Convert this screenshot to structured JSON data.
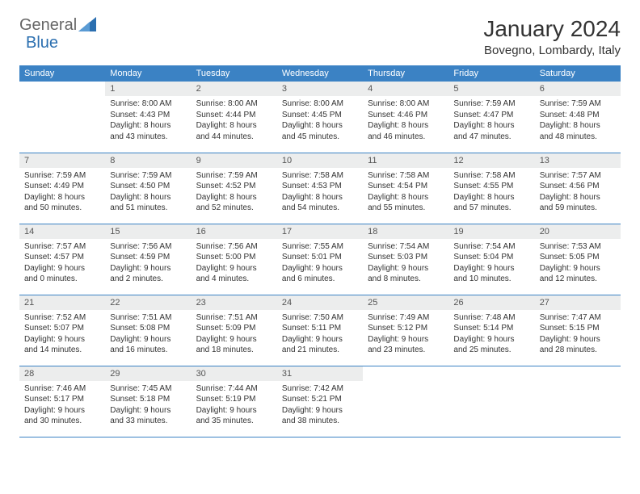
{
  "logo": {
    "text1": "General",
    "text2": "Blue"
  },
  "title": "January 2024",
  "location": "Bovegno, Lombardy, Italy",
  "dayHeaders": [
    "Sunday",
    "Monday",
    "Tuesday",
    "Wednesday",
    "Thursday",
    "Friday",
    "Saturday"
  ],
  "colors": {
    "headerBg": "#3b82c4",
    "dayNumBg": "#eceded",
    "logoAccent": "#2b6fb0"
  },
  "weeks": [
    [
      null,
      {
        "n": "1",
        "sr": "8:00 AM",
        "ss": "4:43 PM",
        "dl": "8 hours and 43 minutes."
      },
      {
        "n": "2",
        "sr": "8:00 AM",
        "ss": "4:44 PM",
        "dl": "8 hours and 44 minutes."
      },
      {
        "n": "3",
        "sr": "8:00 AM",
        "ss": "4:45 PM",
        "dl": "8 hours and 45 minutes."
      },
      {
        "n": "4",
        "sr": "8:00 AM",
        "ss": "4:46 PM",
        "dl": "8 hours and 46 minutes."
      },
      {
        "n": "5",
        "sr": "7:59 AM",
        "ss": "4:47 PM",
        "dl": "8 hours and 47 minutes."
      },
      {
        "n": "6",
        "sr": "7:59 AM",
        "ss": "4:48 PM",
        "dl": "8 hours and 48 minutes."
      }
    ],
    [
      {
        "n": "7",
        "sr": "7:59 AM",
        "ss": "4:49 PM",
        "dl": "8 hours and 50 minutes."
      },
      {
        "n": "8",
        "sr": "7:59 AM",
        "ss": "4:50 PM",
        "dl": "8 hours and 51 minutes."
      },
      {
        "n": "9",
        "sr": "7:59 AM",
        "ss": "4:52 PM",
        "dl": "8 hours and 52 minutes."
      },
      {
        "n": "10",
        "sr": "7:58 AM",
        "ss": "4:53 PM",
        "dl": "8 hours and 54 minutes."
      },
      {
        "n": "11",
        "sr": "7:58 AM",
        "ss": "4:54 PM",
        "dl": "8 hours and 55 minutes."
      },
      {
        "n": "12",
        "sr": "7:58 AM",
        "ss": "4:55 PM",
        "dl": "8 hours and 57 minutes."
      },
      {
        "n": "13",
        "sr": "7:57 AM",
        "ss": "4:56 PM",
        "dl": "8 hours and 59 minutes."
      }
    ],
    [
      {
        "n": "14",
        "sr": "7:57 AM",
        "ss": "4:57 PM",
        "dl": "9 hours and 0 minutes."
      },
      {
        "n": "15",
        "sr": "7:56 AM",
        "ss": "4:59 PM",
        "dl": "9 hours and 2 minutes."
      },
      {
        "n": "16",
        "sr": "7:56 AM",
        "ss": "5:00 PM",
        "dl": "9 hours and 4 minutes."
      },
      {
        "n": "17",
        "sr": "7:55 AM",
        "ss": "5:01 PM",
        "dl": "9 hours and 6 minutes."
      },
      {
        "n": "18",
        "sr": "7:54 AM",
        "ss": "5:03 PM",
        "dl": "9 hours and 8 minutes."
      },
      {
        "n": "19",
        "sr": "7:54 AM",
        "ss": "5:04 PM",
        "dl": "9 hours and 10 minutes."
      },
      {
        "n": "20",
        "sr": "7:53 AM",
        "ss": "5:05 PM",
        "dl": "9 hours and 12 minutes."
      }
    ],
    [
      {
        "n": "21",
        "sr": "7:52 AM",
        "ss": "5:07 PM",
        "dl": "9 hours and 14 minutes."
      },
      {
        "n": "22",
        "sr": "7:51 AM",
        "ss": "5:08 PM",
        "dl": "9 hours and 16 minutes."
      },
      {
        "n": "23",
        "sr": "7:51 AM",
        "ss": "5:09 PM",
        "dl": "9 hours and 18 minutes."
      },
      {
        "n": "24",
        "sr": "7:50 AM",
        "ss": "5:11 PM",
        "dl": "9 hours and 21 minutes."
      },
      {
        "n": "25",
        "sr": "7:49 AM",
        "ss": "5:12 PM",
        "dl": "9 hours and 23 minutes."
      },
      {
        "n": "26",
        "sr": "7:48 AM",
        "ss": "5:14 PM",
        "dl": "9 hours and 25 minutes."
      },
      {
        "n": "27",
        "sr": "7:47 AM",
        "ss": "5:15 PM",
        "dl": "9 hours and 28 minutes."
      }
    ],
    [
      {
        "n": "28",
        "sr": "7:46 AM",
        "ss": "5:17 PM",
        "dl": "9 hours and 30 minutes."
      },
      {
        "n": "29",
        "sr": "7:45 AM",
        "ss": "5:18 PM",
        "dl": "9 hours and 33 minutes."
      },
      {
        "n": "30",
        "sr": "7:44 AM",
        "ss": "5:19 PM",
        "dl": "9 hours and 35 minutes."
      },
      {
        "n": "31",
        "sr": "7:42 AM",
        "ss": "5:21 PM",
        "dl": "9 hours and 38 minutes."
      },
      null,
      null,
      null
    ]
  ],
  "labels": {
    "sunrise": "Sunrise:",
    "sunset": "Sunset:",
    "daylight": "Daylight:"
  }
}
